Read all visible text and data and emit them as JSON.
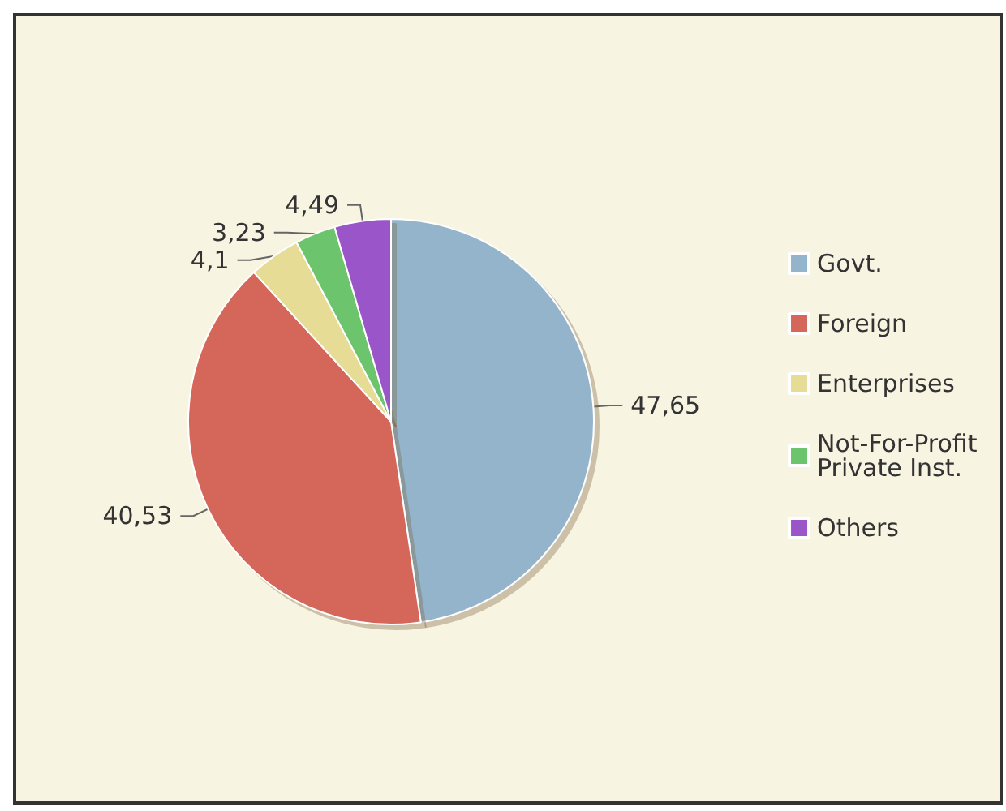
{
  "chart_data": {
    "type": "pie",
    "categories": [
      "Govt.",
      "Foreign",
      "Enterprises",
      "Not-For-Profit Private Inst.",
      "Others"
    ],
    "values": [
      47.65,
      40.53,
      4.1,
      3.23,
      4.49
    ],
    "value_labels": [
      "47,65",
      "40,53",
      "4,1",
      "3,23",
      "4,49"
    ],
    "colors": [
      "#94b4cc",
      "#d4665a",
      "#e6dc96",
      "#6cc46c",
      "#9a56c8"
    ],
    "legend": "right"
  }
}
